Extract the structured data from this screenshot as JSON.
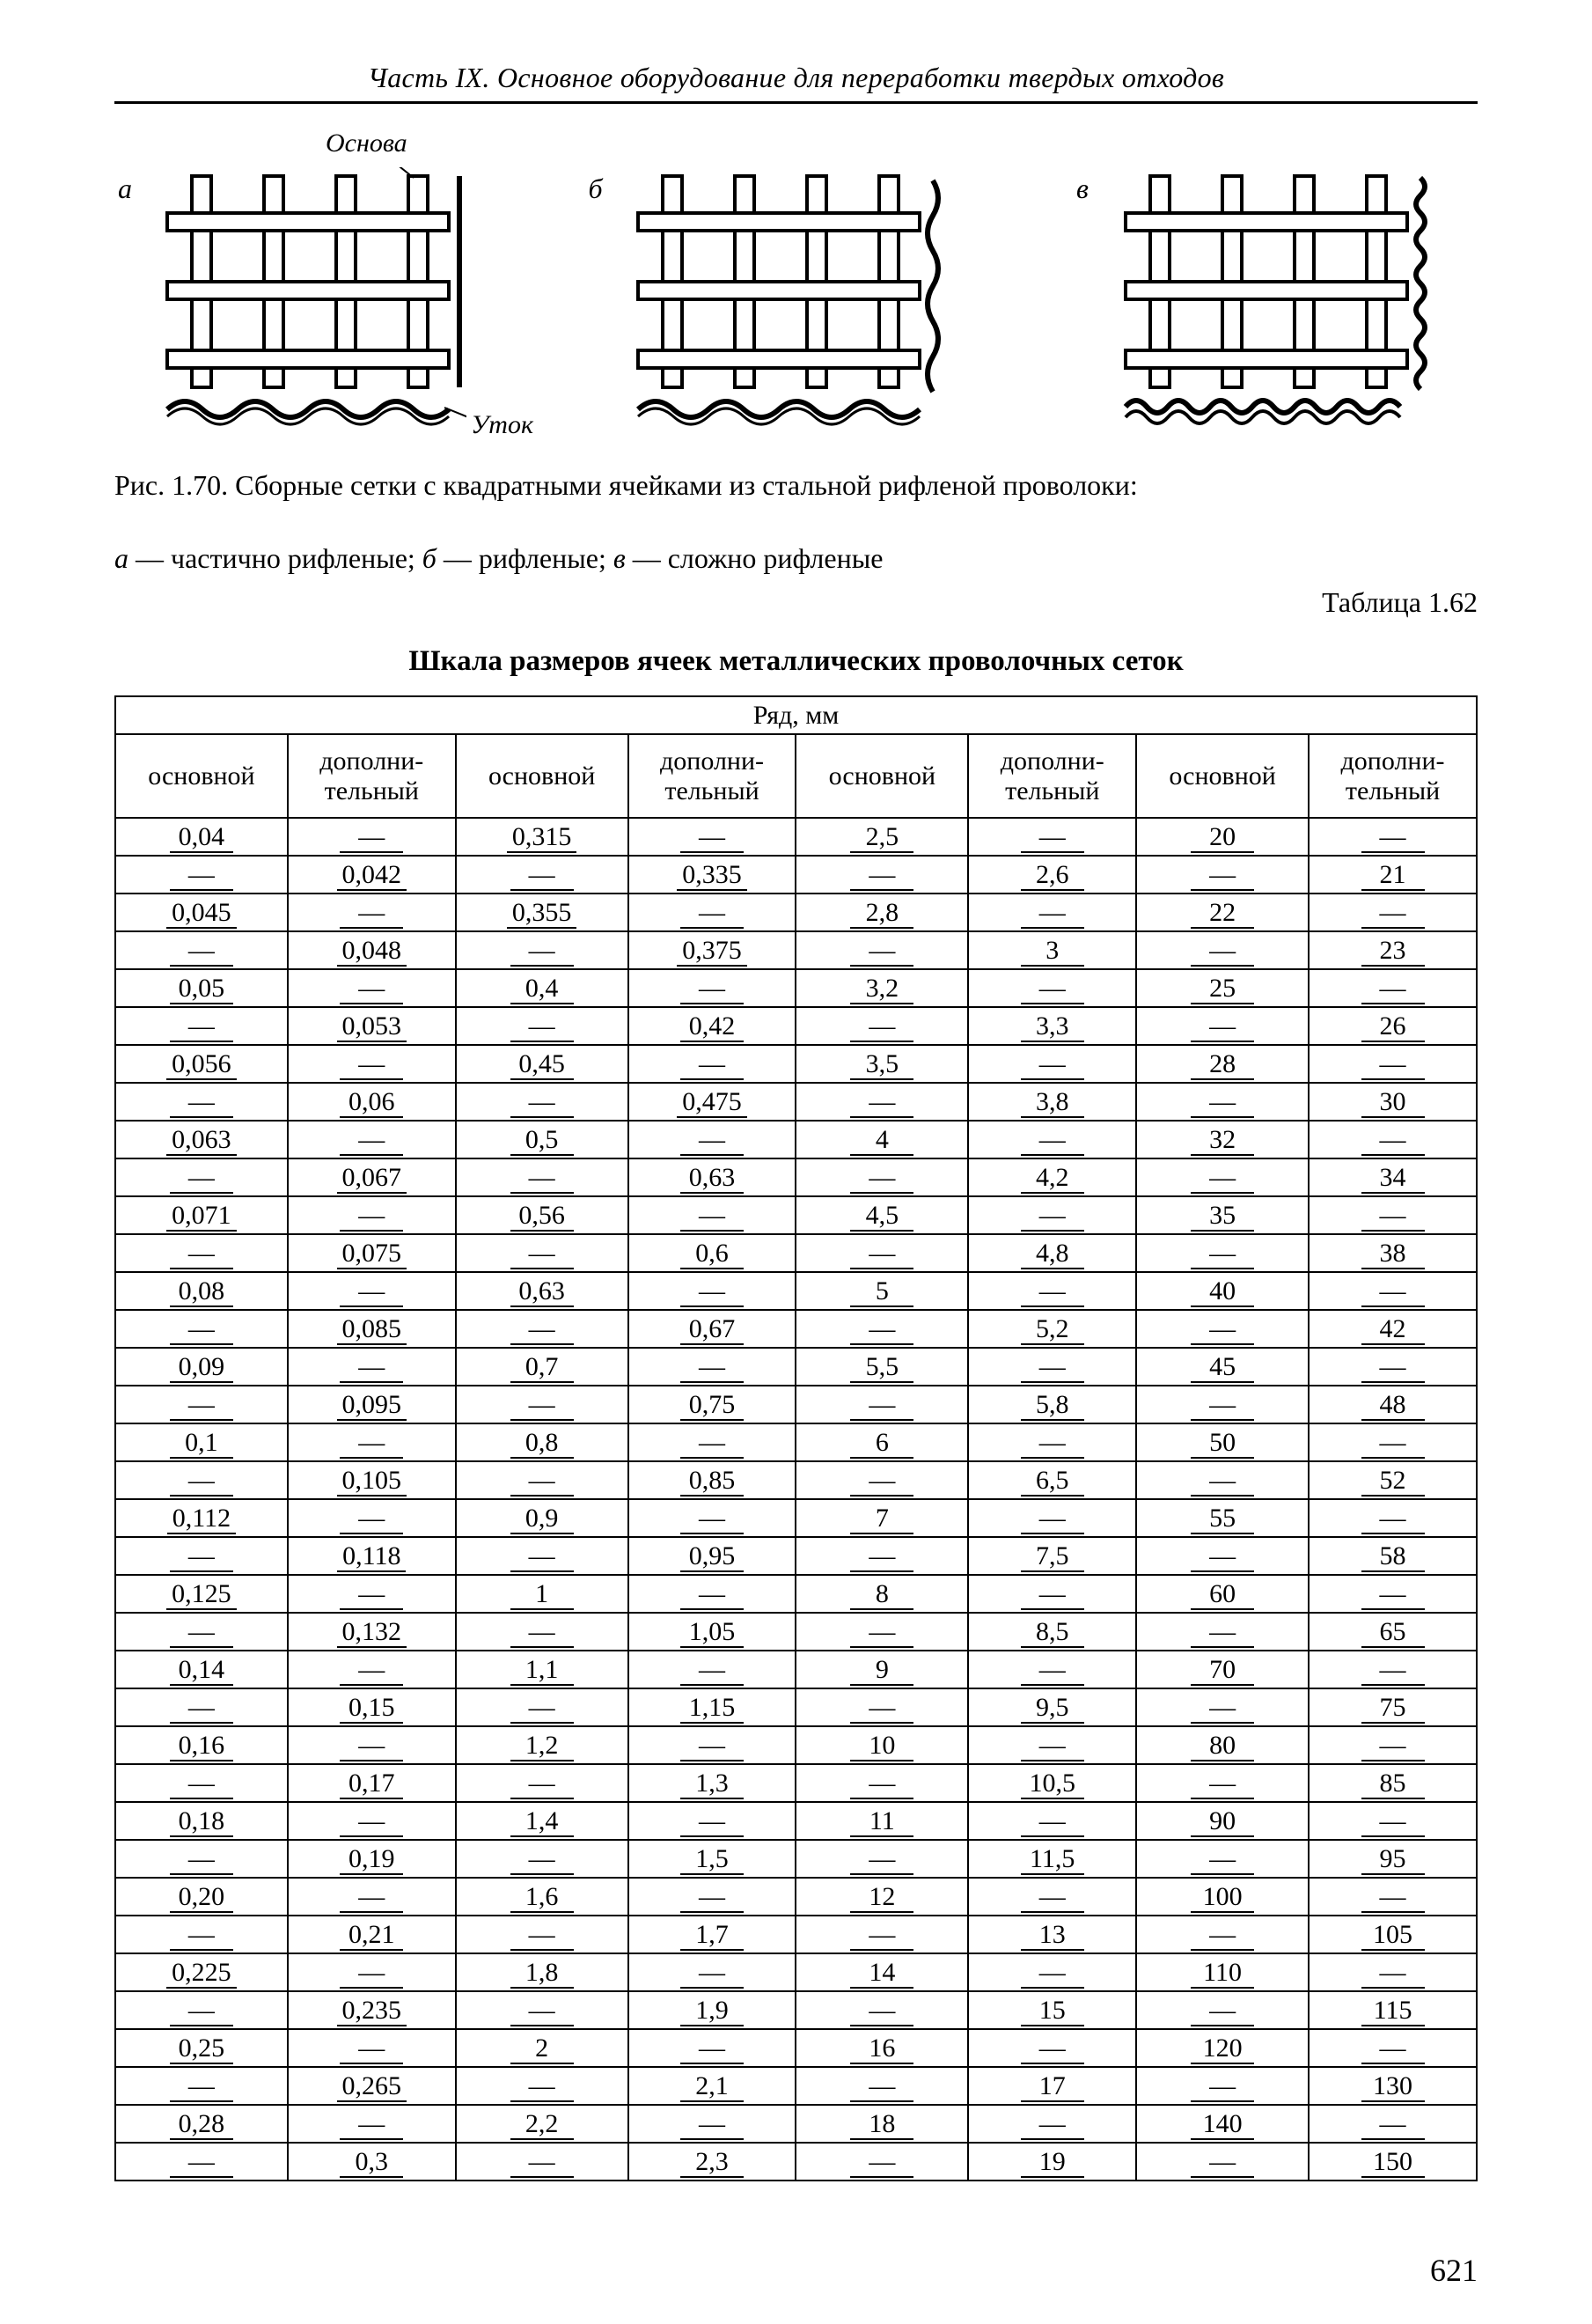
{
  "running_head": "Часть IX. Основное оборудование для переработки твердых отходов",
  "figure": {
    "labels": {
      "a": "а",
      "b": "б",
      "c": "в"
    },
    "osnova": "Основа",
    "utok": "Уток"
  },
  "caption_line1": "Рис. 1.70. Сборные сетки с квадратными ячейками из стальной рифленой проволоки:",
  "caption_line2_parts": {
    "a_key": "а",
    "a_txt": " — частично рифленые; ",
    "b_key": "б",
    "b_txt": " — рифленые; ",
    "c_key": "в",
    "c_txt": " — сложно рифленые"
  },
  "table_number": "Таблица 1.62",
  "table_title": "Шкала размеров ячеек металлических проволочных сеток",
  "table_header_top": "Ряд, мм",
  "col_main": "основной",
  "col_add": "дополни-\nтельный",
  "dash": "—",
  "rows": [
    [
      "0,04",
      "—",
      "0,315",
      "—",
      "2,5",
      "—",
      "20",
      "—"
    ],
    [
      "—",
      "0,042",
      "—",
      "0,335",
      "—",
      "2,6",
      "—",
      "21"
    ],
    [
      "0,045",
      "—",
      "0,355",
      "—",
      "2,8",
      "—",
      "22",
      "—"
    ],
    [
      "—",
      "0,048",
      "—",
      "0,375",
      "—",
      "3",
      "—",
      "23"
    ],
    [
      "0,05",
      "—",
      "0,4",
      "—",
      "3,2",
      "—",
      "25",
      "—"
    ],
    [
      "—",
      "0,053",
      "—",
      "0,42",
      "—",
      "3,3",
      "—",
      "26"
    ],
    [
      "0,056",
      "—",
      "0,45",
      "—",
      "3,5",
      "—",
      "28",
      "—"
    ],
    [
      "—",
      "0,06",
      "—",
      "0,475",
      "—",
      "3,8",
      "—",
      "30"
    ],
    [
      "0,063",
      "—",
      "0,5",
      "—",
      "4",
      "—",
      "32",
      "—"
    ],
    [
      "—",
      "0,067",
      "—",
      "0,63",
      "—",
      "4,2",
      "—",
      "34"
    ],
    [
      "0,071",
      "—",
      "0,56",
      "—",
      "4,5",
      "—",
      "35",
      "—"
    ],
    [
      "—",
      "0,075",
      "—",
      "0,6",
      "—",
      "4,8",
      "—",
      "38"
    ],
    [
      "0,08",
      "—",
      "0,63",
      "—",
      "5",
      "—",
      "40",
      "—"
    ],
    [
      "—",
      "0,085",
      "—",
      "0,67",
      "—",
      "5,2",
      "—",
      "42"
    ],
    [
      "0,09",
      "—",
      "0,7",
      "—",
      "5,5",
      "—",
      "45",
      "—"
    ],
    [
      "—",
      "0,095",
      "—",
      "0,75",
      "—",
      "5,8",
      "—",
      "48"
    ],
    [
      "0,1",
      "—",
      "0,8",
      "—",
      "6",
      "—",
      "50",
      "—"
    ],
    [
      "—",
      "0,105",
      "—",
      "0,85",
      "—",
      "6,5",
      "—",
      "52"
    ],
    [
      "0,112",
      "—",
      "0,9",
      "—",
      "7",
      "—",
      "55",
      "—"
    ],
    [
      "—",
      "0,118",
      "—",
      "0,95",
      "—",
      "7,5",
      "—",
      "58"
    ],
    [
      "0,125",
      "—",
      "1",
      "—",
      "8",
      "—",
      "60",
      "—"
    ],
    [
      "—",
      "0,132",
      "—",
      "1,05",
      "—",
      "8,5",
      "—",
      "65"
    ],
    [
      "0,14",
      "—",
      "1,1",
      "—",
      "9",
      "—",
      "70",
      "—"
    ],
    [
      "—",
      "0,15",
      "—",
      "1,15",
      "—",
      "9,5",
      "—",
      "75"
    ],
    [
      "0,16",
      "—",
      "1,2",
      "—",
      "10",
      "—",
      "80",
      "—"
    ],
    [
      "—",
      "0,17",
      "—",
      "1,3",
      "—",
      "10,5",
      "—",
      "85"
    ],
    [
      "0,18",
      "—",
      "1,4",
      "—",
      "11",
      "—",
      "90",
      "—"
    ],
    [
      "—",
      "0,19",
      "—",
      "1,5",
      "—",
      "11,5",
      "—",
      "95"
    ],
    [
      "0,20",
      "—",
      "1,6",
      "—",
      "12",
      "—",
      "100",
      "—"
    ],
    [
      "—",
      "0,21",
      "—",
      "1,7",
      "—",
      "13",
      "—",
      "105"
    ],
    [
      "0,225",
      "—",
      "1,8",
      "—",
      "14",
      "—",
      "110",
      "—"
    ],
    [
      "—",
      "0,235",
      "—",
      "1,9",
      "—",
      "15",
      "—",
      "115"
    ],
    [
      "0,25",
      "—",
      "2",
      "—",
      "16",
      "—",
      "120",
      "—"
    ],
    [
      "—",
      "0,265",
      "—",
      "2,1",
      "—",
      "17",
      "—",
      "130"
    ],
    [
      "0,28",
      "—",
      "2,2",
      "—",
      "18",
      "—",
      "140",
      "—"
    ],
    [
      "—",
      "0,3",
      "—",
      "2,3",
      "—",
      "19",
      "—",
      "150"
    ]
  ],
  "page_number": "621",
  "svg": {
    "stroke": "#000000",
    "fill": "#ffffff"
  }
}
